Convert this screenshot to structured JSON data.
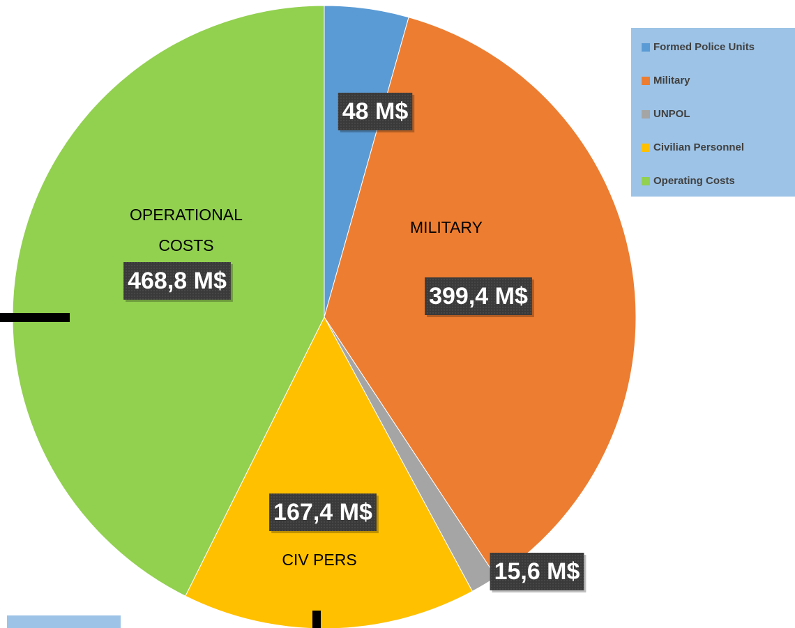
{
  "chart_data": {
    "type": "pie",
    "categories": [
      "Formed Police Units",
      "Military",
      "UNPOL",
      "Civilian Personnel",
      "Operating Costs"
    ],
    "values": [
      48,
      399.4,
      15.6,
      167.4,
      468.8
    ],
    "value_labels": [
      "48 M$",
      "399,4 M$",
      "15,6 M$",
      "167,4 M$",
      "468,8 M$"
    ],
    "colors": [
      "#5b9bd5",
      "#ed7d31",
      "#a5a5a5",
      "#ffc000",
      "#92d050"
    ],
    "annotations": [
      [
        "OPERATIONAL",
        "COSTS"
      ],
      [
        "MILITARY"
      ],
      [
        "CIV PERS"
      ]
    ],
    "legend": "top-right"
  }
}
